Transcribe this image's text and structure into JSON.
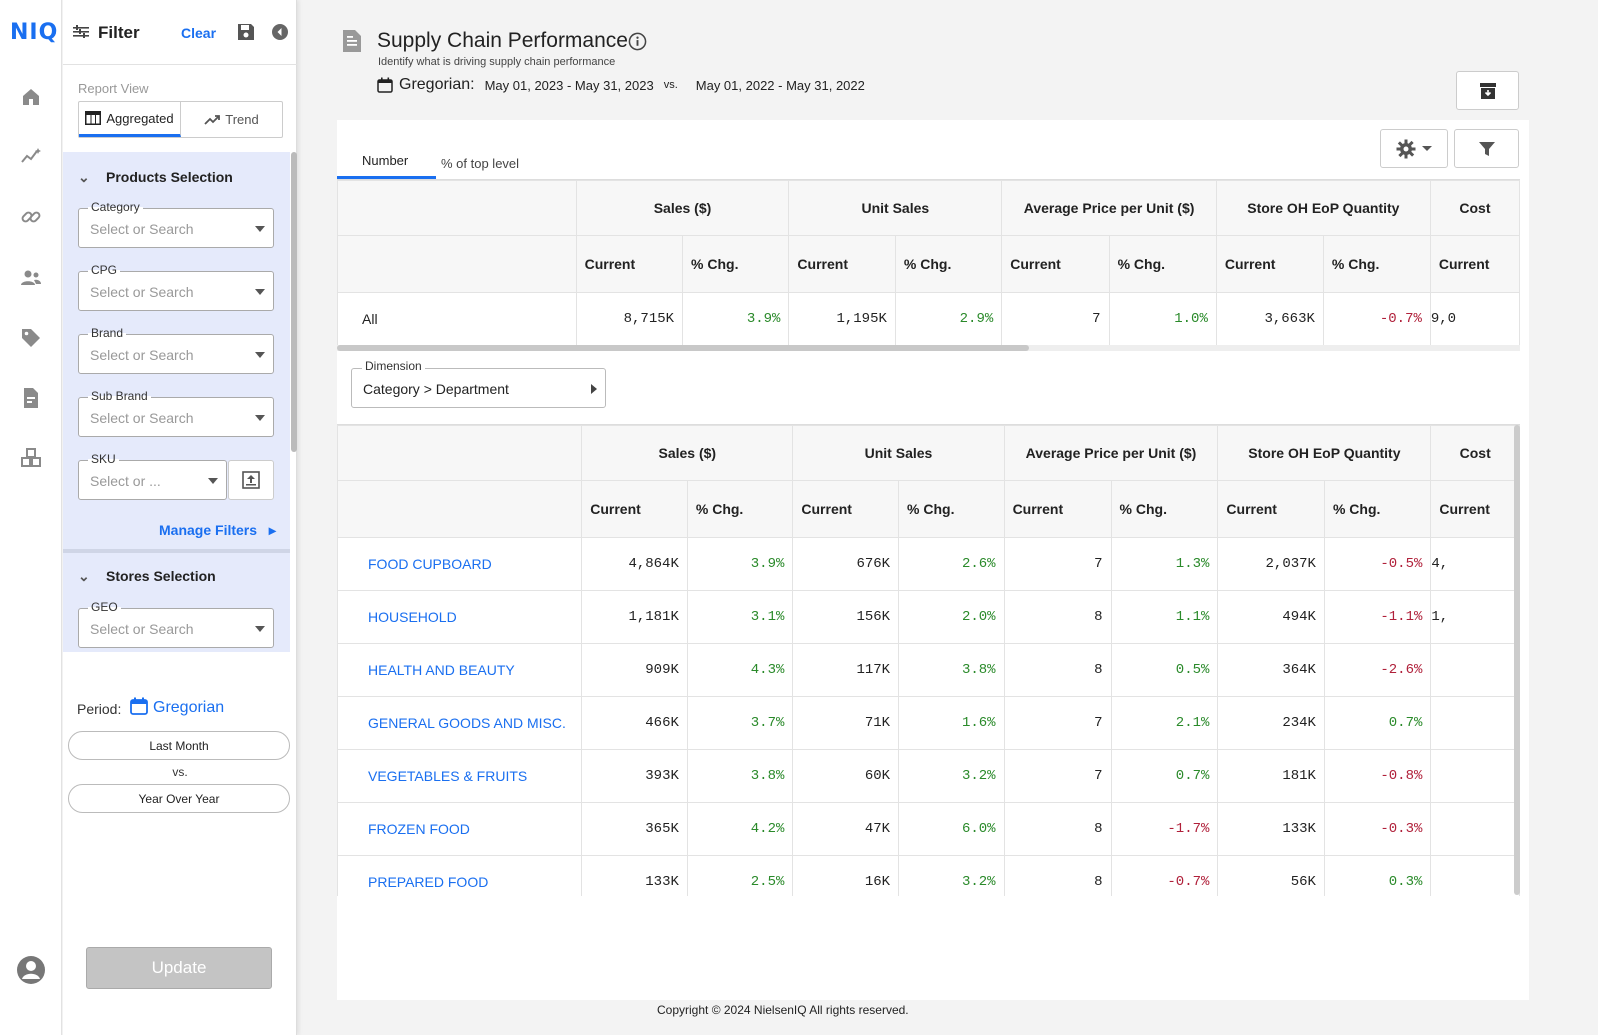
{
  "brand": {
    "logo": "NIQ",
    "accent": "#1a6ff0"
  },
  "rail": {
    "icons": [
      "home-icon",
      "analytics-icon",
      "link-icon",
      "people-icon",
      "tag-icon",
      "report-icon",
      "cubes-icon",
      "account-icon"
    ]
  },
  "filter": {
    "title": "Filter",
    "clear_label": "Clear",
    "report_view_label": "Report View",
    "view_options": [
      "Aggregated",
      "Trend"
    ],
    "products_section": "Products Selection",
    "fields": [
      {
        "label": "Category",
        "placeholder": "Select or Search"
      },
      {
        "label": "CPG",
        "placeholder": "Select or Search"
      },
      {
        "label": "Brand",
        "placeholder": "Select or Search"
      },
      {
        "label": "Sub Brand",
        "placeholder": "Select or Search"
      },
      {
        "label": "SKU",
        "placeholder": "Select or ..."
      }
    ],
    "manage_filters": "Manage Filters",
    "stores_section": "Stores Selection",
    "geo_field": {
      "label": "GEO",
      "placeholder": "Select or Search"
    },
    "period_label": "Period:",
    "period_value": "Gregorian",
    "period_current": "Last Month",
    "vs_label": "vs.",
    "period_compare": "Year Over Year",
    "update_label": "Update"
  },
  "page": {
    "title": "Supply Chain Performance",
    "subtitle": "Identify what is driving supply chain performance",
    "calendar_label": "Gregorian:",
    "current_range": "May 01, 2023 - May 31, 2023",
    "vs_label": "vs.",
    "compare_range": "May 01, 2022 - May 31, 2022"
  },
  "tabs": [
    "Number",
    "% of top level"
  ],
  "table": {
    "groups": [
      "Sales ($)",
      "Unit Sales",
      "Average Price per Unit ($)",
      "Store OH EoP Quantity",
      "Cost"
    ],
    "sub_current": "Current",
    "sub_chg": "% Chg.",
    "total_row": {
      "label": "All",
      "cells": [
        "8,715K",
        "3.9%",
        "1,195K",
        "2.9%",
        "7",
        "1.0%",
        "3,663K",
        "-0.7%",
        "9,0"
      ]
    },
    "dimension_label": "Dimension",
    "dimension_value": "Category > Department",
    "rows": [
      {
        "label": "FOOD CUPBOARD",
        "cells": [
          "4,864K",
          "3.9%",
          "676K",
          "2.6%",
          "7",
          "1.3%",
          "2,037K",
          "-0.5%",
          "4,"
        ]
      },
      {
        "label": "HOUSEHOLD",
        "cells": [
          "1,181K",
          "3.1%",
          "156K",
          "2.0%",
          "8",
          "1.1%",
          "494K",
          "-1.1%",
          "1,"
        ]
      },
      {
        "label": "HEALTH AND BEAUTY",
        "cells": [
          "909K",
          "4.3%",
          "117K",
          "3.8%",
          "8",
          "0.5%",
          "364K",
          "-2.6%",
          ""
        ]
      },
      {
        "label": "GENERAL GOODS AND MISC.",
        "cells": [
          "466K",
          "3.7%",
          "71K",
          "1.6%",
          "7",
          "2.1%",
          "234K",
          "0.7%",
          ""
        ]
      },
      {
        "label": "VEGETABLES & FRUITS",
        "cells": [
          "393K",
          "3.8%",
          "60K",
          "3.2%",
          "7",
          "0.7%",
          "181K",
          "-0.8%",
          ""
        ]
      },
      {
        "label": "FROZEN FOOD",
        "cells": [
          "365K",
          "4.2%",
          "47K",
          "6.0%",
          "8",
          "-1.7%",
          "133K",
          "-0.3%",
          ""
        ]
      },
      {
        "label": "PREPARED FOOD",
        "cells": [
          "133K",
          "2.5%",
          "16K",
          "3.2%",
          "8",
          "-0.7%",
          "56K",
          "0.3%",
          ""
        ]
      }
    ]
  },
  "footer": "Copyright © 2024 NielsenIQ All rights reserved."
}
